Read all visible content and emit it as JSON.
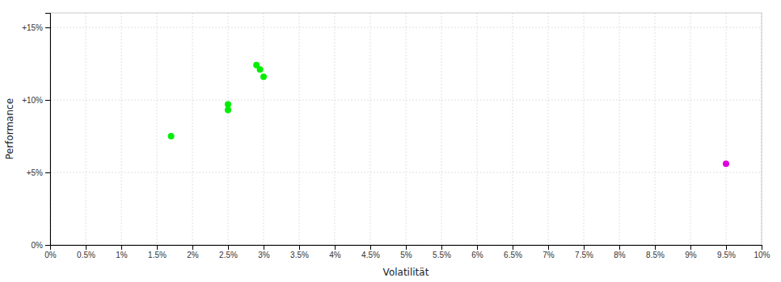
{
  "chart_data": {
    "type": "scatter",
    "xlabel": "Volatilität",
    "ylabel": "Performance",
    "xlim": [
      0,
      0.1
    ],
    "ylim": [
      0,
      0.16
    ],
    "xticks": [
      {
        "value": 0,
        "label": "0%"
      },
      {
        "value": 0.005,
        "label": "0.5%"
      },
      {
        "value": 0.01,
        "label": "1%"
      },
      {
        "value": 0.015,
        "label": "1.5%"
      },
      {
        "value": 0.02,
        "label": "2%"
      },
      {
        "value": 0.025,
        "label": "2.5%"
      },
      {
        "value": 0.03,
        "label": "3%"
      },
      {
        "value": 0.035,
        "label": "3.5%"
      },
      {
        "value": 0.04,
        "label": "4%"
      },
      {
        "value": 0.045,
        "label": "4.5%"
      },
      {
        "value": 0.05,
        "label": "5%"
      },
      {
        "value": 0.055,
        "label": "5.5%"
      },
      {
        "value": 0.06,
        "label": "6%"
      },
      {
        "value": 0.065,
        "label": "6.5%"
      },
      {
        "value": 0.07,
        "label": "7%"
      },
      {
        "value": 0.075,
        "label": "7.5%"
      },
      {
        "value": 0.08,
        "label": "8%"
      },
      {
        "value": 0.085,
        "label": "8.5%"
      },
      {
        "value": 0.09,
        "label": "9%"
      },
      {
        "value": 0.095,
        "label": "9.5%"
      },
      {
        "value": 0.1,
        "label": "10%"
      }
    ],
    "yticks": [
      {
        "value": 0,
        "label": "0%"
      },
      {
        "value": 0.05,
        "label": "+5%"
      },
      {
        "value": 0.1,
        "label": "+10%"
      },
      {
        "value": 0.15,
        "label": "+15%"
      }
    ],
    "grid": true,
    "series": [
      {
        "color": "#00ee00",
        "x": [
          0.017,
          0.025,
          0.025,
          0.029,
          0.0295,
          0.03
        ],
        "values": [
          0.075,
          0.097,
          0.093,
          0.124,
          0.121,
          0.116
        ]
      },
      {
        "color": "#dd00dd",
        "x": [
          0.095
        ],
        "values": [
          0.056
        ]
      }
    ]
  }
}
